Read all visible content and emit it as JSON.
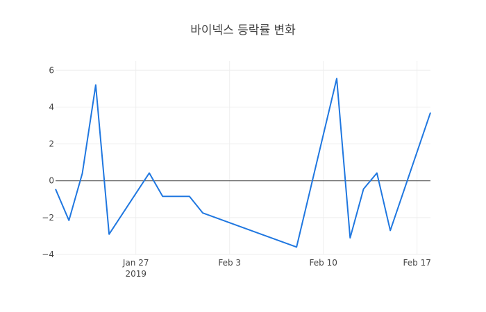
{
  "chart_data": {
    "type": "line",
    "title": "바이넥스 등락률 변화",
    "xlabel": "",
    "ylabel": "",
    "x_axis": {
      "type": "date",
      "range": [
        "2019-01-21",
        "2019-02-18"
      ],
      "ticks": [
        {
          "date": "2019-01-27",
          "label": "Jan 27",
          "sublabel": "2019"
        },
        {
          "date": "2019-02-03",
          "label": "Feb 3",
          "sublabel": ""
        },
        {
          "date": "2019-02-10",
          "label": "Feb 10",
          "sublabel": ""
        },
        {
          "date": "2019-02-17",
          "label": "Feb 17",
          "sublabel": ""
        }
      ]
    },
    "y_axis": {
      "range": [
        -4,
        6.5
      ],
      "ticks": [
        {
          "value": 6,
          "label": "6"
        },
        {
          "value": 4,
          "label": "4"
        },
        {
          "value": 2,
          "label": "2"
        },
        {
          "value": 0,
          "label": "0"
        },
        {
          "value": -2,
          "label": "−2"
        },
        {
          "value": -4,
          "label": "−4"
        }
      ]
    },
    "grid": true,
    "series": [
      {
        "color": "#1f77e0",
        "points": [
          {
            "x": "2019-01-21",
            "y": -0.45
          },
          {
            "x": "2019-01-22",
            "y": -2.15
          },
          {
            "x": "2019-01-23",
            "y": 0.4
          },
          {
            "x": "2019-01-24",
            "y": 5.2
          },
          {
            "x": "2019-01-25",
            "y": -2.9
          },
          {
            "x": "2019-01-28",
            "y": 0.42
          },
          {
            "x": "2019-01-29",
            "y": -0.85
          },
          {
            "x": "2019-01-30",
            "y": -0.85
          },
          {
            "x": "2019-01-31",
            "y": -0.85
          },
          {
            "x": "2019-02-01",
            "y": -1.75
          },
          {
            "x": "2019-02-08",
            "y": -3.6
          },
          {
            "x": "2019-02-11",
            "y": 5.55
          },
          {
            "x": "2019-02-12",
            "y": -3.1
          },
          {
            "x": "2019-02-13",
            "y": -0.45
          },
          {
            "x": "2019-02-14",
            "y": 0.42
          },
          {
            "x": "2019-02-15",
            "y": -2.7
          },
          {
            "x": "2019-02-18",
            "y": 3.7
          }
        ]
      }
    ]
  }
}
